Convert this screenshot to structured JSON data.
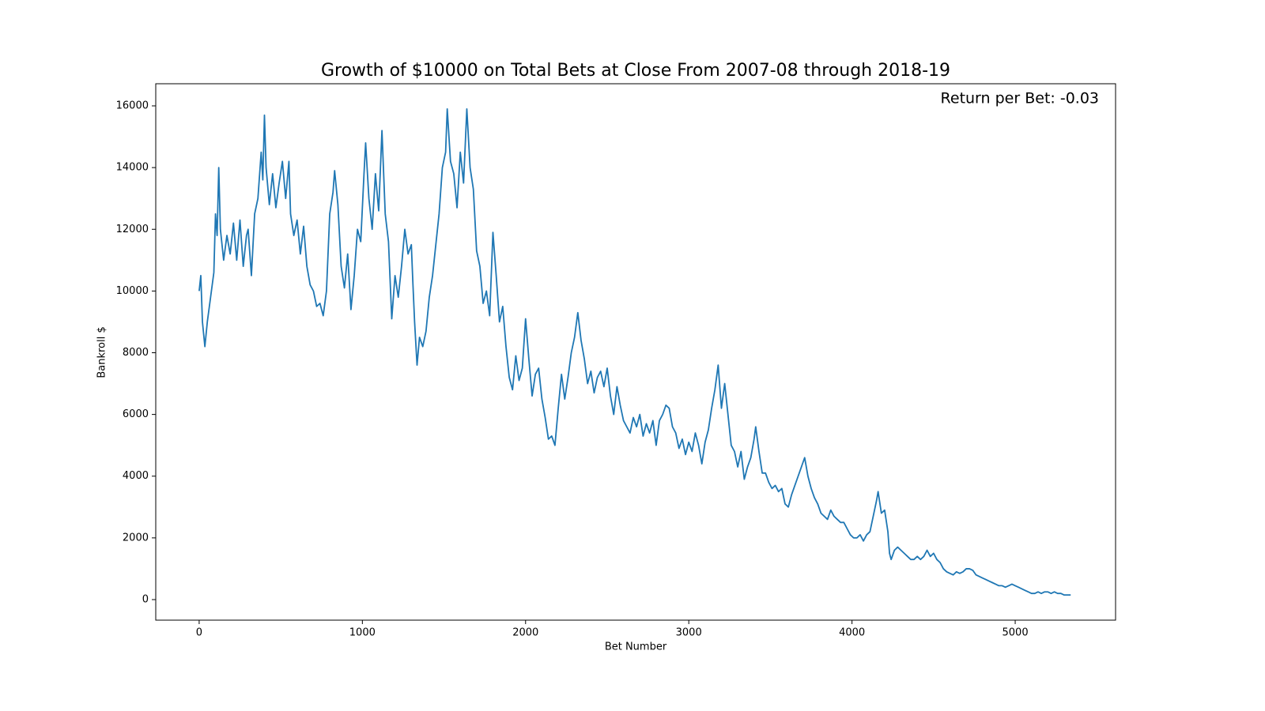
{
  "chart_data": {
    "type": "line",
    "title": "Growth of $10000 on Total Bets at Close From 2007-08 through 2018-19",
    "annotation": "Return per Bet: -0.03",
    "x_label": "Bet Number",
    "y_label": "Bankroll $",
    "color": "#1f77b4",
    "xlim": [
      -266,
      5615
    ],
    "ylim": [
      -666,
      16717
    ],
    "xticks": [
      0,
      1000,
      2000,
      3000,
      4000,
      5000
    ],
    "yticks": [
      0,
      2000,
      4000,
      6000,
      8000,
      10000,
      12000,
      14000,
      16000
    ],
    "grid": false,
    "x": [
      0,
      10,
      20,
      35,
      50,
      70,
      90,
      100,
      110,
      120,
      130,
      150,
      170,
      190,
      210,
      230,
      250,
      270,
      290,
      300,
      320,
      340,
      360,
      380,
      390,
      400,
      410,
      430,
      450,
      470,
      490,
      510,
      530,
      550,
      560,
      580,
      600,
      620,
      640,
      660,
      680,
      700,
      720,
      740,
      760,
      780,
      800,
      820,
      830,
      850,
      870,
      890,
      910,
      930,
      950,
      970,
      990,
      1010,
      1020,
      1040,
      1060,
      1080,
      1100,
      1120,
      1140,
      1160,
      1180,
      1200,
      1220,
      1240,
      1260,
      1280,
      1300,
      1310,
      1320,
      1335,
      1350,
      1370,
      1390,
      1410,
      1430,
      1450,
      1470,
      1490,
      1510,
      1520,
      1540,
      1560,
      1580,
      1600,
      1620,
      1640,
      1660,
      1680,
      1700,
      1720,
      1740,
      1760,
      1780,
      1800,
      1820,
      1840,
      1860,
      1880,
      1900,
      1920,
      1940,
      1960,
      1980,
      2000,
      2020,
      2040,
      2060,
      2080,
      2100,
      2120,
      2140,
      2160,
      2180,
      2200,
      2220,
      2240,
      2260,
      2280,
      2300,
      2320,
      2340,
      2360,
      2380,
      2400,
      2420,
      2440,
      2460,
      2480,
      2500,
      2520,
      2540,
      2560,
      2580,
      2600,
      2620,
      2640,
      2660,
      2680,
      2700,
      2720,
      2740,
      2760,
      2780,
      2800,
      2820,
      2840,
      2860,
      2880,
      2900,
      2920,
      2940,
      2960,
      2980,
      3000,
      3020,
      3040,
      3060,
      3080,
      3100,
      3120,
      3140,
      3160,
      3180,
      3200,
      3220,
      3240,
      3260,
      3280,
      3300,
      3320,
      3340,
      3360,
      3380,
      3400,
      3410,
      3430,
      3450,
      3470,
      3490,
      3510,
      3530,
      3550,
      3570,
      3590,
      3610,
      3630,
      3650,
      3670,
      3690,
      3710,
      3730,
      3750,
      3770,
      3790,
      3810,
      3830,
      3850,
      3870,
      3890,
      3910,
      3930,
      3950,
      3970,
      3990,
      4010,
      4030,
      4050,
      4070,
      4090,
      4110,
      4130,
      4150,
      4160,
      4180,
      4200,
      4220,
      4230,
      4240,
      4260,
      4280,
      4300,
      4320,
      4340,
      4360,
      4380,
      4400,
      4420,
      4440,
      4460,
      4480,
      4500,
      4520,
      4540,
      4560,
      4580,
      4600,
      4620,
      4640,
      4660,
      4680,
      4700,
      4720,
      4740,
      4760,
      4780,
      4800,
      4820,
      4840,
      4860,
      4880,
      4900,
      4920,
      4940,
      4960,
      4980,
      5000,
      5020,
      5040,
      5060,
      5080,
      5100,
      5120,
      5140,
      5160,
      5180,
      5200,
      5220,
      5240,
      5260,
      5280,
      5300,
      5340
    ],
    "values": [
      10000,
      10500,
      9000,
      8200,
      9000,
      9800,
      10600,
      12500,
      11800,
      14000,
      12000,
      11000,
      11800,
      11200,
      12200,
      11000,
      12300,
      10800,
      11800,
      12000,
      10500,
      12500,
      13000,
      14500,
      13600,
      15700,
      14000,
      12800,
      13800,
      12700,
      13500,
      14200,
      13000,
      14200,
      12500,
      11800,
      12300,
      11200,
      12100,
      10800,
      10200,
      10000,
      9500,
      9600,
      9200,
      10000,
      12500,
      13200,
      13900,
      12800,
      10800,
      10100,
      11200,
      9400,
      10500,
      12000,
      11600,
      13800,
      14800,
      13000,
      12000,
      13800,
      12600,
      15200,
      12500,
      11600,
      9100,
      10500,
      9800,
      10800,
      12000,
      11200,
      11500,
      10200,
      9000,
      7600,
      8500,
      8200,
      8700,
      9800,
      10500,
      11500,
      12500,
      14000,
      14500,
      15900,
      14200,
      13800,
      12700,
      14500,
      13500,
      15900,
      14000,
      13300,
      11300,
      10800,
      9600,
      10000,
      9200,
      11900,
      10500,
      9000,
      9500,
      8200,
      7200,
      6800,
      7900,
      7100,
      7500,
      9100,
      7800,
      6600,
      7300,
      7500,
      6500,
      5900,
      5200,
      5300,
      5000,
      6200,
      7300,
      6500,
      7200,
      8000,
      8500,
      9300,
      8400,
      7800,
      7000,
      7400,
      6700,
      7200,
      7400,
      6900,
      7500,
      6600,
      6000,
      6900,
      6300,
      5800,
      5600,
      5400,
      5900,
      5600,
      6000,
      5300,
      5700,
      5400,
      5800,
      5000,
      5800,
      6000,
      6300,
      6200,
      5600,
      5400,
      4900,
      5200,
      4700,
      5100,
      4800,
      5400,
      5000,
      4400,
      5100,
      5500,
      6200,
      6800,
      7600,
      6200,
      7000,
      6000,
      5000,
      4800,
      4300,
      4800,
      3900,
      4300,
      4600,
      5200,
      5600,
      4800,
      4100,
      4100,
      3800,
      3600,
      3700,
      3500,
      3600,
      3100,
      3000,
      3400,
      3700,
      4000,
      4300,
      4600,
      4000,
      3600,
      3300,
      3100,
      2800,
      2700,
      2600,
      2900,
      2700,
      2600,
      2500,
      2500,
      2300,
      2100,
      2000,
      2000,
      2100,
      1900,
      2100,
      2200,
      2700,
      3200,
      3500,
      2800,
      2900,
      2200,
      1500,
      1300,
      1600,
      1700,
      1600,
      1500,
      1400,
      1300,
      1300,
      1400,
      1300,
      1400,
      1600,
      1400,
      1500,
      1300,
      1200,
      1000,
      900,
      850,
      800,
      900,
      850,
      900,
      1000,
      1000,
      950,
      800,
      750,
      700,
      650,
      600,
      550,
      500,
      450,
      450,
      400,
      450,
      500,
      450,
      400,
      350,
      300,
      250,
      200,
      200,
      250,
      200,
      250,
      250,
      200,
      250,
      200,
      200,
      150,
      150
    ]
  }
}
